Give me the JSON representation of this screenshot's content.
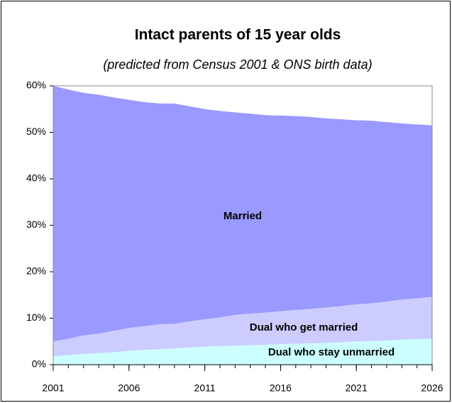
{
  "chart_data": {
    "type": "stacked-area",
    "title": "Intact parents of 15 year olds",
    "subtitle": "(predicted from Census 2001 & ONS birth data)",
    "x": [
      2001,
      2002,
      2003,
      2004,
      2005,
      2006,
      2007,
      2008,
      2009,
      2010,
      2011,
      2012,
      2013,
      2014,
      2015,
      2016,
      2017,
      2018,
      2019,
      2020,
      2021,
      2022,
      2023,
      2024,
      2025,
      2026
    ],
    "xlim": [
      2001,
      2026
    ],
    "xticks": [
      2001,
      2006,
      2011,
      2016,
      2021,
      2026
    ],
    "ylim": [
      0,
      60
    ],
    "yticks": [
      {
        "value": 0,
        "label": "0%"
      },
      {
        "value": 10,
        "label": "10%"
      },
      {
        "value": 20,
        "label": "20%"
      },
      {
        "value": 30,
        "label": "30%"
      },
      {
        "value": 40,
        "label": "40%"
      },
      {
        "value": 50,
        "label": "50%"
      },
      {
        "value": 60,
        "label": "60%"
      }
    ],
    "series": [
      {
        "name": "Dual who stay unmarried",
        "color": "#ccffff",
        "values": [
          1.8,
          2.1,
          2.3,
          2.5,
          2.7,
          3.0,
          3.2,
          3.3,
          3.5,
          3.7,
          3.9,
          4.0,
          4.1,
          4.2,
          4.3,
          4.4,
          4.5,
          4.6,
          4.7,
          4.8,
          5.0,
          5.1,
          5.2,
          5.4,
          5.5,
          5.6
        ]
      },
      {
        "name": "Dual who get married",
        "color": "#ccccff",
        "values": [
          3.2,
          3.5,
          4.0,
          4.2,
          4.6,
          4.9,
          5.1,
          5.4,
          5.3,
          5.6,
          5.9,
          6.2,
          6.6,
          6.8,
          6.9,
          7.1,
          7.3,
          7.4,
          7.6,
          7.8,
          8.0,
          8.1,
          8.4,
          8.6,
          8.8,
          9.0
        ]
      },
      {
        "name": "Married",
        "color": "#9999ff",
        "values": [
          55.0,
          53.6,
          52.2,
          51.4,
          50.2,
          49.1,
          48.2,
          47.5,
          47.4,
          46.3,
          45.2,
          44.4,
          43.6,
          43.0,
          42.5,
          42.1,
          41.7,
          41.3,
          40.7,
          40.2,
          39.6,
          39.3,
          38.6,
          37.9,
          37.4,
          36.9
        ]
      }
    ]
  }
}
